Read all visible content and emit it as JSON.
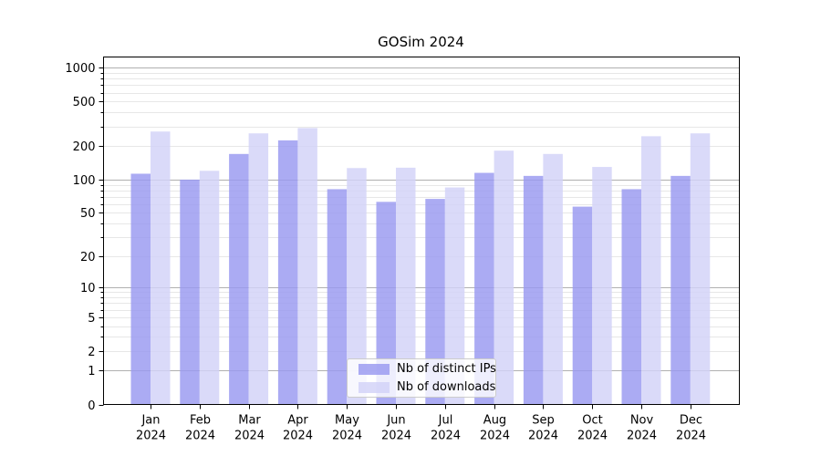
{
  "chart_data": {
    "type": "bar",
    "title": "GOSim 2024",
    "categories": [
      "Jan",
      "Feb",
      "Mar",
      "Apr",
      "May",
      "Jun",
      "Jul",
      "Aug",
      "Sep",
      "Oct",
      "Nov",
      "Dec"
    ],
    "x_tick_second_line": "2024",
    "series": [
      {
        "key": "distinct-ips",
        "name": "Nb of distinct IPs",
        "color": "#9999f0",
        "values": [
          113,
          100,
          170,
          225,
          82,
          63,
          67,
          115,
          108,
          57,
          82,
          108
        ]
      },
      {
        "key": "downloads",
        "name": "Nb of downloads",
        "color": "#d2d2f8",
        "values": [
          270,
          120,
          260,
          290,
          127,
          128,
          85,
          182,
          170,
          130,
          245,
          260
        ]
      }
    ],
    "bar_opacity": 0.82,
    "y_scale": "log1p",
    "ylim": [
      0,
      1250
    ],
    "xlabel": "",
    "ylabel": "",
    "y_tick_labels": [
      0,
      1,
      2,
      5,
      10,
      20,
      50,
      100,
      200,
      500,
      1000
    ],
    "y_major_gridlines": [
      1,
      10,
      100,
      1000
    ],
    "y_minor_gridlines": [
      2,
      3,
      4,
      5,
      6,
      7,
      8,
      9,
      20,
      30,
      40,
      50,
      60,
      70,
      80,
      90,
      200,
      300,
      400,
      500,
      600,
      700,
      800,
      900
    ],
    "grid": true,
    "legend_position": "lower center",
    "colors": {
      "major_grid": "#b0b0b0",
      "minor_grid": "#e7e7e7",
      "axis": "#000000",
      "text": "#000000",
      "legend_border": "#cccccc"
    }
  }
}
